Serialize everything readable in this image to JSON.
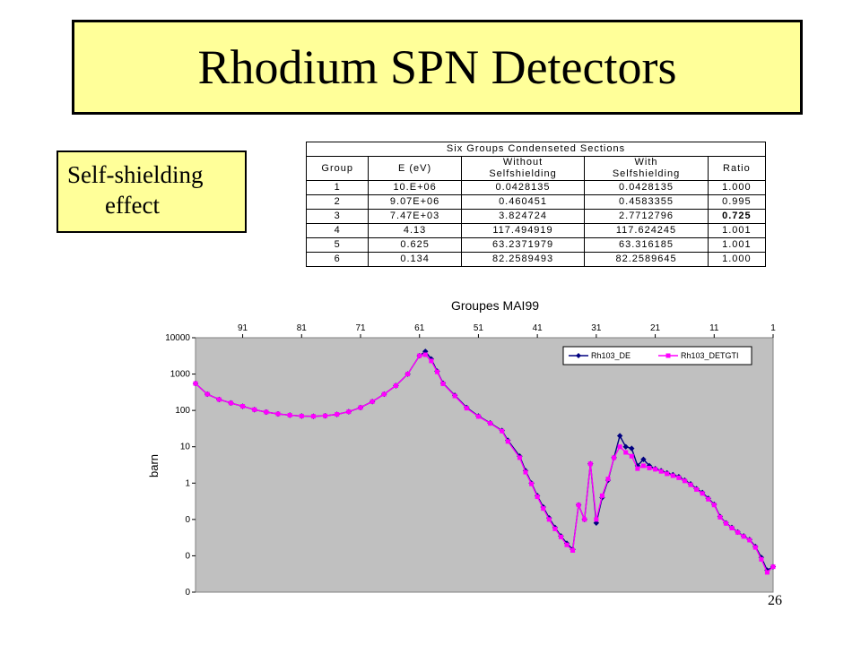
{
  "slide": {
    "title": "Rhodium SPN Detectors",
    "side_label_line1": "Self-shielding",
    "side_label_line2": "effect",
    "page_number": "26"
  },
  "table": {
    "caption": "Six Groups Condenseted Sections",
    "headers": [
      {
        "line1": "Group",
        "line2": ""
      },
      {
        "line1": "E (eV)",
        "line2": ""
      },
      {
        "line1": "Without",
        "line2": "Selfshielding"
      },
      {
        "line1": "With",
        "line2": "Selfshielding"
      },
      {
        "line1": "Ratio",
        "line2": ""
      }
    ],
    "rows": [
      [
        "1",
        "10.E+06",
        "0.0428135",
        "0.0428135",
        "1.000"
      ],
      [
        "2",
        "9.07E+06",
        "0.460451",
        "0.4583355",
        "0.995"
      ],
      [
        "3",
        "7.47E+03",
        "3.824724",
        "2.7712796",
        "0.725"
      ],
      [
        "4",
        "4.13",
        "117.494919",
        "117.624245",
        "1.001"
      ],
      [
        "5",
        "0.625",
        "63.2371979",
        "63.316185",
        "1.001"
      ],
      [
        "6",
        "0.134",
        "82.2589493",
        "82.2589645",
        "1.000"
      ]
    ]
  },
  "chart_data": {
    "type": "line",
    "title": "Groupes MAI99",
    "xlabel": "",
    "ylabel": "barn",
    "x_top_ticks": [
      "91",
      "81",
      "71",
      "61",
      "51",
      "41",
      "31",
      "21",
      "11",
      "1"
    ],
    "y_tick_labels": [
      "10000",
      "1000",
      "100",
      "10",
      "1",
      "0",
      "0",
      "0",
      "0"
    ],
    "y_scale": "log",
    "x_range": [
      99,
      1
    ],
    "grid": false,
    "plot_background": "#c0c0c0",
    "legend_position": "top-right",
    "series": [
      {
        "name": "Rh103_DE",
        "color": "#000080",
        "marker": "diamond",
        "points": [
          [
            99,
            550
          ],
          [
            97,
            280
          ],
          [
            95,
            200
          ],
          [
            93,
            160
          ],
          [
            91,
            130
          ],
          [
            89,
            105
          ],
          [
            87,
            90
          ],
          [
            85,
            80
          ],
          [
            83,
            74
          ],
          [
            81,
            70
          ],
          [
            79,
            69
          ],
          [
            77,
            71
          ],
          [
            75,
            78
          ],
          [
            73,
            92
          ],
          [
            71,
            120
          ],
          [
            69,
            175
          ],
          [
            67,
            280
          ],
          [
            65,
            480
          ],
          [
            63,
            1000
          ],
          [
            61,
            3200
          ],
          [
            60,
            4200
          ],
          [
            59,
            2600
          ],
          [
            58,
            1200
          ],
          [
            57,
            560
          ],
          [
            55,
            260
          ],
          [
            53,
            120
          ],
          [
            51,
            70
          ],
          [
            49,
            45
          ],
          [
            47,
            28
          ],
          [
            46,
            15
          ],
          [
            44,
            5.5
          ],
          [
            43,
            2.2
          ],
          [
            42,
            1
          ],
          [
            41,
            0.45
          ],
          [
            40,
            0.22
          ],
          [
            39,
            0.11
          ],
          [
            38,
            0.06
          ],
          [
            37,
            0.035
          ],
          [
            36,
            0.022
          ],
          [
            35,
            0.015
          ],
          [
            34,
            0.25
          ],
          [
            33,
            0.1
          ],
          [
            32,
            3.4
          ],
          [
            31,
            0.08
          ],
          [
            30,
            0.4
          ],
          [
            29,
            1.2
          ],
          [
            28,
            5
          ],
          [
            27,
            20
          ],
          [
            26,
            10
          ],
          [
            25,
            9
          ],
          [
            24,
            3
          ],
          [
            23,
            4.5
          ],
          [
            22,
            3
          ],
          [
            21,
            2.5
          ],
          [
            20,
            2.2
          ],
          [
            19,
            1.9
          ],
          [
            18,
            1.7
          ],
          [
            17,
            1.5
          ],
          [
            16,
            1.2
          ],
          [
            15,
            0.95
          ],
          [
            14,
            0.7
          ],
          [
            13,
            0.55
          ],
          [
            12,
            0.38
          ],
          [
            11,
            0.26
          ],
          [
            10,
            0.12
          ],
          [
            9,
            0.08
          ],
          [
            8,
            0.06
          ],
          [
            7,
            0.045
          ],
          [
            6,
            0.035
          ],
          [
            5,
            0.028
          ],
          [
            4,
            0.018
          ],
          [
            3,
            0.009
          ],
          [
            2,
            0.004
          ],
          [
            1,
            0.005
          ]
        ]
      },
      {
        "name": "Rh103_DETGTI",
        "color": "#ff00ff",
        "marker": "square",
        "points": [
          [
            99,
            550
          ],
          [
            97,
            280
          ],
          [
            95,
            200
          ],
          [
            93,
            160
          ],
          [
            91,
            130
          ],
          [
            89,
            105
          ],
          [
            87,
            90
          ],
          [
            85,
            80
          ],
          [
            83,
            74
          ],
          [
            81,
            70
          ],
          [
            79,
            69
          ],
          [
            77,
            71
          ],
          [
            75,
            78
          ],
          [
            73,
            92
          ],
          [
            71,
            120
          ],
          [
            69,
            175
          ],
          [
            67,
            280
          ],
          [
            65,
            480
          ],
          [
            63,
            1000
          ],
          [
            61,
            3200
          ],
          [
            60,
            3400
          ],
          [
            59,
            2300
          ],
          [
            58,
            1150
          ],
          [
            57,
            540
          ],
          [
            55,
            250
          ],
          [
            53,
            115
          ],
          [
            51,
            68
          ],
          [
            49,
            44
          ],
          [
            47,
            27
          ],
          [
            46,
            14
          ],
          [
            44,
            5
          ],
          [
            43,
            2
          ],
          [
            42,
            0.95
          ],
          [
            41,
            0.42
          ],
          [
            40,
            0.2
          ],
          [
            39,
            0.1
          ],
          [
            38,
            0.055
          ],
          [
            37,
            0.033
          ],
          [
            36,
            0.02
          ],
          [
            35,
            0.014
          ],
          [
            34,
            0.25
          ],
          [
            33,
            0.1
          ],
          [
            32,
            3.4
          ],
          [
            31,
            0.1
          ],
          [
            30,
            0.45
          ],
          [
            29,
            1.3
          ],
          [
            28,
            5
          ],
          [
            27,
            10
          ],
          [
            26,
            7
          ],
          [
            25,
            5.5
          ],
          [
            24,
            2.5
          ],
          [
            23,
            3
          ],
          [
            22,
            2.6
          ],
          [
            21,
            2.4
          ],
          [
            20,
            2.1
          ],
          [
            19,
            1.8
          ],
          [
            18,
            1.6
          ],
          [
            17,
            1.4
          ],
          [
            16,
            1.15
          ],
          [
            15,
            0.9
          ],
          [
            14,
            0.67
          ],
          [
            13,
            0.52
          ],
          [
            12,
            0.36
          ],
          [
            11,
            0.25
          ],
          [
            10,
            0.115
          ],
          [
            9,
            0.078
          ],
          [
            8,
            0.058
          ],
          [
            7,
            0.044
          ],
          [
            6,
            0.034
          ],
          [
            5,
            0.027
          ],
          [
            4,
            0.017
          ],
          [
            3,
            0.008
          ],
          [
            2,
            0.0035
          ],
          [
            1,
            0.005
          ]
        ]
      }
    ]
  }
}
